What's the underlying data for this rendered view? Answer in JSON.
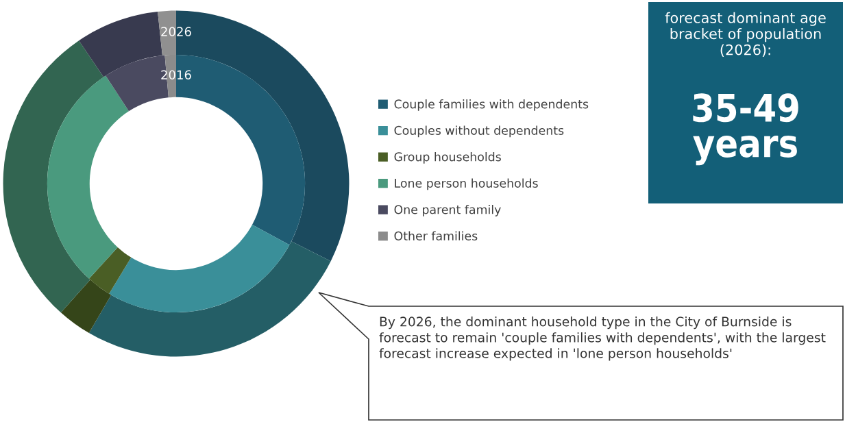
{
  "chart_data": [
    {
      "type": "donut",
      "categories": [
        "Couple families with dependents",
        "Couples without dependents",
        "Group households",
        "Lone person households",
        "One parent family",
        "Other families"
      ],
      "series": [
        {
          "name": "2026",
          "values": [
            32.4,
            26.0,
            3.2,
            28.9,
            7.8,
            1.7
          ],
          "colors": [
            "#1b4a5e",
            "#245e66",
            "#354519",
            "#326551",
            "#383a4f",
            "#909090"
          ]
        },
        {
          "name": "2016",
          "values": [
            32.9,
            25.8,
            3.1,
            29.0,
            7.8,
            1.4
          ],
          "colors": [
            "#1f5c73",
            "#3a8f99",
            "#4a5e25",
            "#4a9a7e",
            "#4a4a60",
            "#8c8c8c"
          ]
        }
      ],
      "legend": "right",
      "annotations": [
        "By 2026, the dominant household type in the City of Burnside is forecast to remain 'couple families with dependents', with the largest forecast increase expected in 'lone person households'"
      ]
    },
    {
      "type": "other",
      "title": "forecast dominant age bracket of population (2026):",
      "annotations": [
        "35-49 years"
      ]
    }
  ]
}
